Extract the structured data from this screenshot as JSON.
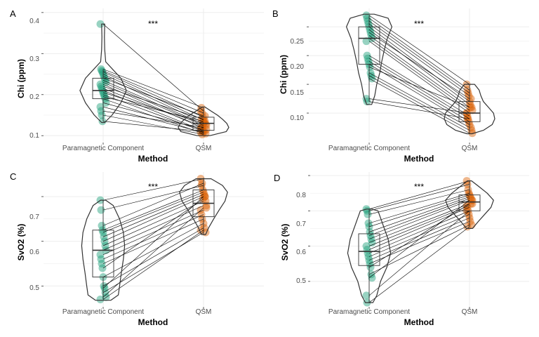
{
  "figure": {
    "colors": {
      "paramagnetic": "#1b9e77",
      "qsm": "#d95f02",
      "grid": "#ebebeb",
      "line": "#000000",
      "outline": "#333333"
    }
  },
  "chart_data": [
    {
      "tag": "A",
      "type": "scatter",
      "categories": [
        "Paramagnetic Component",
        "QSM"
      ],
      "xlabel": "Method",
      "ylabel": "Chi (ppm)",
      "ylim": [
        0.085,
        0.41
      ],
      "yticks": [
        0.1,
        0.2,
        0.3,
        0.4
      ],
      "yticklabels": [
        "0.1",
        "0.2",
        "0.3",
        "0.4"
      ],
      "significance": "***",
      "box": {
        "Paramagnetic Component": [
          0.135,
          0.19,
          0.21,
          0.24,
          0.262
        ],
        "QSM": [
          0.103,
          0.113,
          0.13,
          0.145,
          0.168
        ]
      },
      "violin": {
        "Paramagnetic Component": {
          "y": [
            0.132,
            0.15,
            0.18,
            0.21,
            0.24,
            0.26,
            0.28,
            0.31,
            0.34,
            0.372
          ],
          "w": [
            0.06,
            0.35,
            0.7,
            0.92,
            0.7,
            0.4,
            0.1,
            0.06,
            0.05,
            0.06
          ]
        },
        "QSM": {
          "y": [
            0.1,
            0.11,
            0.12,
            0.13,
            0.14,
            0.15,
            0.16,
            0.17
          ],
          "w": [
            0.25,
            0.9,
            1.0,
            0.92,
            0.75,
            0.55,
            0.3,
            0.05
          ]
        }
      },
      "pairs": [
        [
          0.372,
          0.16
        ],
        [
          0.262,
          0.168
        ],
        [
          0.258,
          0.155
        ],
        [
          0.255,
          0.145
        ],
        [
          0.25,
          0.138
        ],
        [
          0.245,
          0.132
        ],
        [
          0.24,
          0.148
        ],
        [
          0.235,
          0.128
        ],
        [
          0.23,
          0.125
        ],
        [
          0.225,
          0.118
        ],
        [
          0.22,
          0.14
        ],
        [
          0.215,
          0.122
        ],
        [
          0.21,
          0.112
        ],
        [
          0.205,
          0.13
        ],
        [
          0.2,
          0.11
        ],
        [
          0.195,
          0.135
        ],
        [
          0.19,
          0.105
        ],
        [
          0.18,
          0.115
        ],
        [
          0.17,
          0.108
        ],
        [
          0.16,
          0.12
        ],
        [
          0.15,
          0.103
        ],
        [
          0.135,
          0.11
        ]
      ]
    },
    {
      "tag": "B",
      "type": "scatter",
      "categories": [
        "Paramagnetic Component",
        "QSM"
      ],
      "xlabel": "Method",
      "ylabel": "Chi (ppm)",
      "ylim": [
        0.05,
        0.282
      ],
      "yticks": [
        0.1,
        0.15,
        0.2,
        0.25
      ],
      "yticklabels": [
        "0.10",
        "0.15",
        "0.20",
        "0.25"
      ],
      "significance": "***",
      "box": {
        "Paramagnetic Component": [
          0.12,
          0.185,
          0.23,
          0.25,
          0.27
        ],
        "QSM": [
          0.065,
          0.085,
          0.1,
          0.12,
          0.15
        ]
      },
      "violin": {
        "Paramagnetic Component": {
          "y": [
            0.115,
            0.13,
            0.15,
            0.17,
            0.19,
            0.21,
            0.23,
            0.25,
            0.265,
            0.272
          ],
          "w": [
            0.1,
            0.22,
            0.3,
            0.42,
            0.5,
            0.6,
            0.72,
            0.9,
            0.75,
            0.2
          ]
        },
        "QSM": {
          "y": [
            0.064,
            0.07,
            0.08,
            0.09,
            0.1,
            0.11,
            0.12,
            0.13,
            0.14,
            0.15
          ],
          "w": [
            0.1,
            0.55,
            0.9,
            1.0,
            0.95,
            0.75,
            0.55,
            0.45,
            0.38,
            0.2
          ]
        }
      },
      "pairs": [
        [
          0.27,
          0.15
        ],
        [
          0.265,
          0.14
        ],
        [
          0.26,
          0.135
        ],
        [
          0.255,
          0.13
        ],
        [
          0.25,
          0.12
        ],
        [
          0.245,
          0.115
        ],
        [
          0.24,
          0.125
        ],
        [
          0.235,
          0.11
        ],
        [
          0.23,
          0.105
        ],
        [
          0.225,
          0.1
        ],
        [
          0.2,
          0.095
        ],
        [
          0.195,
          0.09
        ],
        [
          0.19,
          0.085
        ],
        [
          0.185,
          0.08
        ],
        [
          0.18,
          0.11
        ],
        [
          0.17,
          0.075
        ],
        [
          0.165,
          0.07
        ],
        [
          0.16,
          0.065
        ],
        [
          0.125,
          0.1
        ],
        [
          0.12,
          0.09
        ]
      ]
    },
    {
      "tag": "C",
      "type": "scatter",
      "categories": [
        "Paramagnetic Component",
        "QSM"
      ],
      "xlabel": "Method",
      "ylabel": "SvO2 (%)",
      "ylim": [
        0.455,
        0.755
      ],
      "yticks": [
        0.5,
        0.6,
        0.7
      ],
      "yticklabels": [
        "0.5",
        "0.6",
        "0.7"
      ],
      "significance": "***",
      "box": {
        "Paramagnetic Component": [
          0.47,
          0.52,
          0.58,
          0.625,
          0.692
        ],
        "QSM": [
          0.615,
          0.655,
          0.685,
          0.715,
          0.742
        ]
      },
      "violin": {
        "Paramagnetic Component": {
          "y": [
            0.468,
            0.48,
            0.5,
            0.53,
            0.56,
            0.59,
            0.62,
            0.65,
            0.68,
            0.692
          ],
          "w": [
            0.3,
            0.6,
            0.65,
            0.72,
            0.8,
            0.85,
            0.8,
            0.65,
            0.4,
            0.1
          ]
        },
        "QSM": {
          "y": [
            0.615,
            0.63,
            0.65,
            0.67,
            0.69,
            0.71,
            0.725,
            0.74
          ],
          "w": [
            0.08,
            0.2,
            0.4,
            0.62,
            0.85,
            0.95,
            0.75,
            0.3
          ]
        }
      },
      "pairs": [
        [
          0.692,
          0.74
        ],
        [
          0.67,
          0.725
        ],
        [
          0.635,
          0.73
        ],
        [
          0.625,
          0.715
        ],
        [
          0.62,
          0.71
        ],
        [
          0.61,
          0.705
        ],
        [
          0.6,
          0.7
        ],
        [
          0.59,
          0.69
        ],
        [
          0.58,
          0.68
        ],
        [
          0.57,
          0.67
        ],
        [
          0.56,
          0.66
        ],
        [
          0.55,
          0.65
        ],
        [
          0.54,
          0.695
        ],
        [
          0.52,
          0.64
        ],
        [
          0.5,
          0.63
        ],
        [
          0.495,
          0.7
        ],
        [
          0.485,
          0.62
        ],
        [
          0.475,
          0.675
        ],
        [
          0.47,
          0.625
        ]
      ]
    },
    {
      "tag": "D",
      "type": "scatter",
      "categories": [
        "Paramagnetic Component",
        "QSM"
      ],
      "xlabel": "Method",
      "ylabel": "SvO2 (%)",
      "ylim": [
        0.43,
        0.81
      ],
      "yticks": [
        0.5,
        0.6,
        0.7,
        0.8
      ],
      "yticklabels": [
        "0.5",
        "0.6",
        "0.7",
        "0.8"
      ],
      "significance": "***",
      "box": {
        "Paramagnetic Component": [
          0.44,
          0.545,
          0.585,
          0.635,
          0.705
        ],
        "QSM": [
          0.655,
          0.7,
          0.725,
          0.745,
          0.785
        ]
      },
      "violin": {
        "Paramagnetic Component": {
          "y": [
            0.44,
            0.46,
            0.5,
            0.54,
            0.58,
            0.62,
            0.66,
            0.7,
            0.705
          ],
          "w": [
            0.15,
            0.3,
            0.45,
            0.7,
            0.85,
            0.75,
            0.55,
            0.35,
            0.1
          ]
        },
        "QSM": {
          "y": [
            0.65,
            0.67,
            0.69,
            0.71,
            0.73,
            0.75,
            0.77,
            0.785
          ],
          "w": [
            0.12,
            0.35,
            0.6,
            0.85,
            0.95,
            0.7,
            0.35,
            0.08
          ]
        }
      },
      "pairs": [
        [
          0.705,
          0.785
        ],
        [
          0.7,
          0.775
        ],
        [
          0.69,
          0.76
        ],
        [
          0.665,
          0.75
        ],
        [
          0.655,
          0.745
        ],
        [
          0.64,
          0.74
        ],
        [
          0.63,
          0.735
        ],
        [
          0.62,
          0.73
        ],
        [
          0.61,
          0.72
        ],
        [
          0.6,
          0.715
        ],
        [
          0.59,
          0.71
        ],
        [
          0.58,
          0.7
        ],
        [
          0.57,
          0.69
        ],
        [
          0.56,
          0.68
        ],
        [
          0.55,
          0.67
        ],
        [
          0.54,
          0.72
        ],
        [
          0.52,
          0.66
        ],
        [
          0.51,
          0.73
        ],
        [
          0.46,
          0.7
        ],
        [
          0.44,
          0.655
        ]
      ]
    }
  ]
}
